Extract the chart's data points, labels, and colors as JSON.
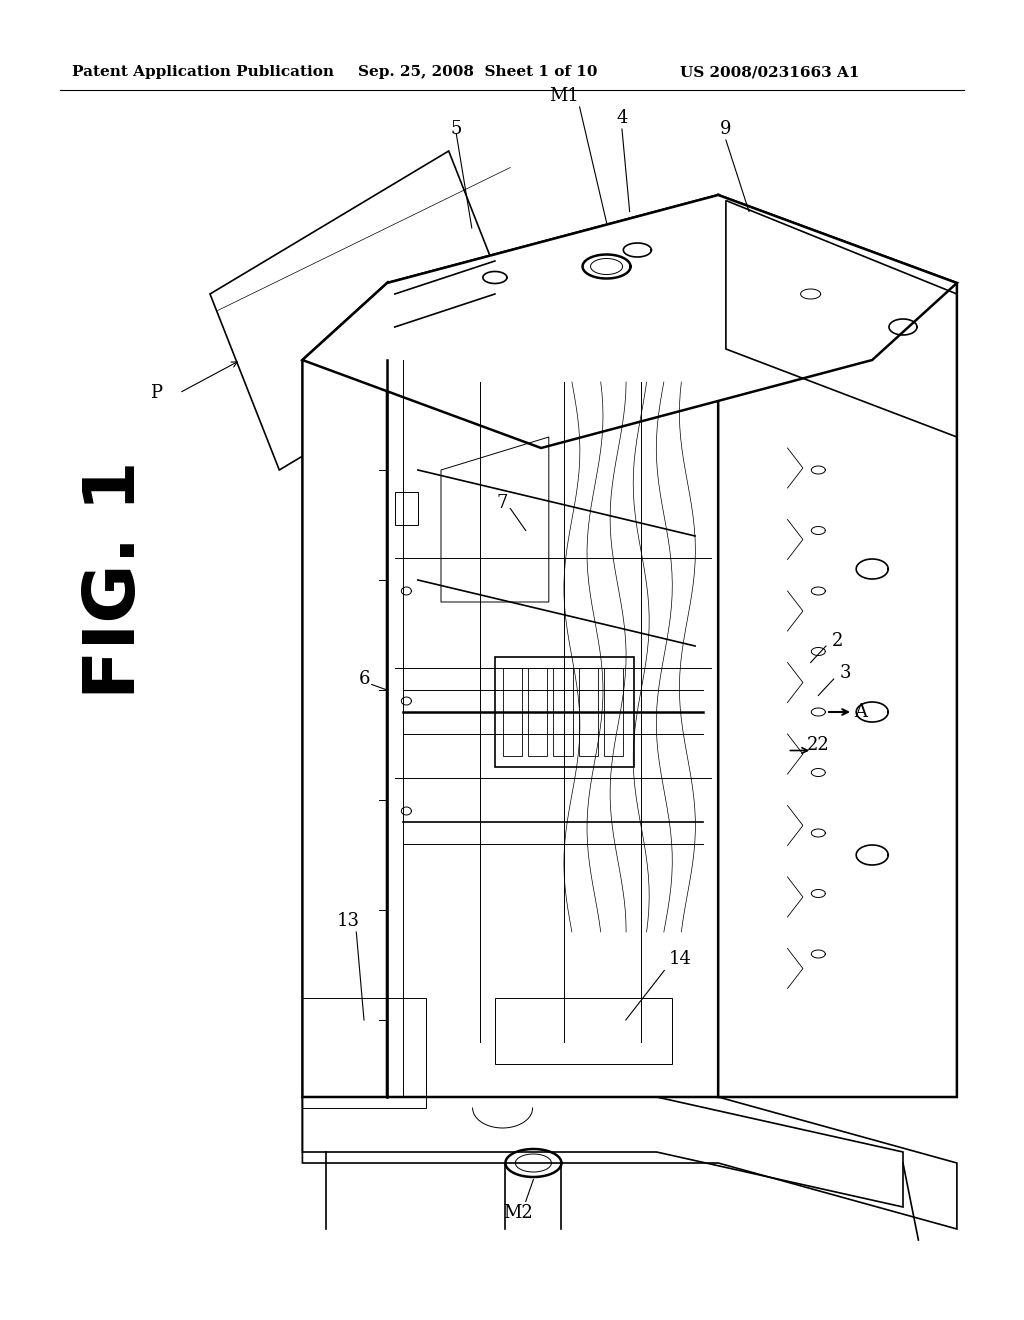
{
  "background_color": "#ffffff",
  "header_left": "Patent Application Publication",
  "header_center": "Sep. 25, 2008  Sheet 1 of 10",
  "header_right": "US 2008/0231663 A1",
  "fig_label": "FIG. 1",
  "labels": [
    "P",
    "5",
    "M1",
    "4",
    "9",
    "7",
    "6",
    "2",
    "3",
    "A",
    "22",
    "13",
    "14",
    "M2"
  ],
  "label_fontsize": 13
}
